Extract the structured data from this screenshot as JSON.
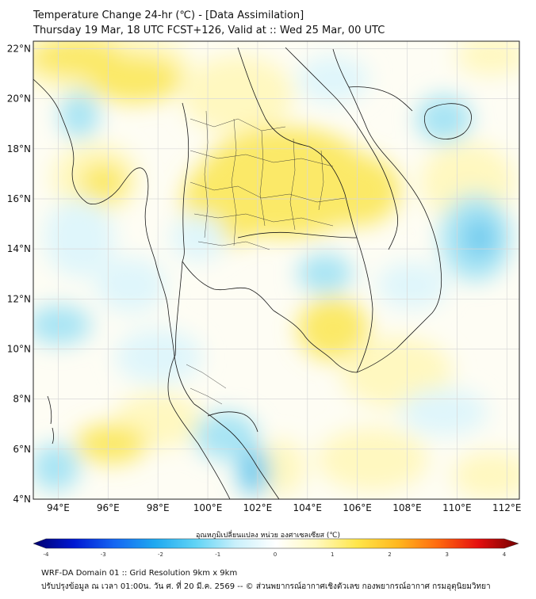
{
  "title": {
    "line1": "Temperature Change 24-hr (℃) - [Data Assimilation]",
    "line2": "Thursday 19 Mar, 18 UTC FCST+126, Valid at :: Wed 25 Mar, 00 UTC"
  },
  "map": {
    "lat_range": [
      4,
      22.3
    ],
    "lon_range": [
      93,
      112.5
    ],
    "lat_ticks": [
      "22°N",
      "20°N",
      "18°N",
      "16°N",
      "14°N",
      "12°N",
      "10°N",
      "8°N",
      "6°N",
      "4°N"
    ],
    "lon_ticks": [
      "94°E",
      "96°E",
      "98°E",
      "100°E",
      "102°E",
      "104°E",
      "106°E",
      "108°E",
      "110°E",
      "112°E"
    ],
    "grid": true,
    "field_colors": {
      "neutral": "#ffffff",
      "slight_warm": "#fff8c0",
      "warm": "#fbe968",
      "slight_cool": "#dff6fb",
      "cool": "#a7e4f4",
      "cooler": "#6fcbef",
      "coast": "#000000"
    }
  },
  "colorbar": {
    "label": "อุณหภูมิเปลี่ยนแปลง หน่วย องศาเซลเซียส (℃)",
    "min": -4,
    "max": 4,
    "ticks": [
      "-4",
      "-3",
      "-2",
      "-1",
      "0",
      "1",
      "2",
      "3",
      "4"
    ],
    "stops": [
      "#00006e",
      "#0018d2",
      "#1466f2",
      "#1ea8f0",
      "#5fd3f5",
      "#c9f0fb",
      "#ffffff",
      "#fff9bf",
      "#ffe64a",
      "#ffb81e",
      "#ff6a0e",
      "#e50f0f",
      "#730000"
    ]
  },
  "footer": {
    "line1": "WRF-DA Domain 01 :: Grid Resolution 9km x 9km",
    "line2": "ปรับปรุงข้อมูล ณ เวลา 01:00น. วัน ศ. ที่ 20 มี.ค. 2569 -- © ส่วนพยากรณ์อากาศเชิงตัวเลข กองพยากรณ์อากาศ กรมอุตุนิยมวิทยา"
  }
}
